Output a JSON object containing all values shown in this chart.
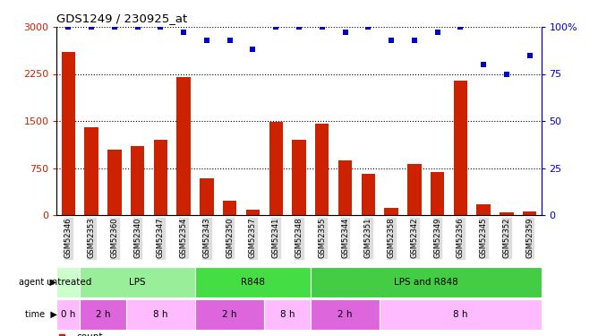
{
  "title": "GDS1249 / 230925_at",
  "samples": [
    "GSM52346",
    "GSM52353",
    "GSM52360",
    "GSM52340",
    "GSM52347",
    "GSM52354",
    "GSM52343",
    "GSM52350",
    "GSM52357",
    "GSM52341",
    "GSM52348",
    "GSM52355",
    "GSM52344",
    "GSM52351",
    "GSM52358",
    "GSM52342",
    "GSM52349",
    "GSM52356",
    "GSM52345",
    "GSM52352",
    "GSM52359"
  ],
  "counts": [
    2600,
    1400,
    1050,
    1100,
    1200,
    2200,
    580,
    230,
    90,
    1480,
    1200,
    1460,
    870,
    660,
    120,
    820,
    680,
    2150,
    170,
    50,
    55
  ],
  "percentile": [
    100,
    100,
    100,
    100,
    100,
    97,
    93,
    93,
    88,
    100,
    100,
    100,
    97,
    100,
    93,
    93,
    97,
    100,
    80,
    75,
    85
  ],
  "ylim_left": [
    0,
    3000
  ],
  "ylim_right": [
    0,
    100
  ],
  "yticks_left": [
    0,
    750,
    1500,
    2250,
    3000
  ],
  "yticks_right": [
    0,
    25,
    50,
    75,
    100
  ],
  "bar_color": "#CC2200",
  "dot_color": "#0000CC",
  "agent_row": [
    {
      "label": "untreated",
      "start": 0,
      "end": 1,
      "color": "#ccffcc"
    },
    {
      "label": "LPS",
      "start": 1,
      "end": 6,
      "color": "#99ee99"
    },
    {
      "label": "R848",
      "start": 6,
      "end": 11,
      "color": "#44dd44"
    },
    {
      "label": "LPS and R848",
      "start": 11,
      "end": 21,
      "color": "#44cc44"
    }
  ],
  "time_row": [
    {
      "label": "0 h",
      "start": 0,
      "end": 1,
      "color": "#ffbbff"
    },
    {
      "label": "2 h",
      "start": 1,
      "end": 3,
      "color": "#dd66dd"
    },
    {
      "label": "8 h",
      "start": 3,
      "end": 6,
      "color": "#ffbbff"
    },
    {
      "label": "2 h",
      "start": 6,
      "end": 9,
      "color": "#dd66dd"
    },
    {
      "label": "8 h",
      "start": 9,
      "end": 11,
      "color": "#ffbbff"
    },
    {
      "label": "2 h",
      "start": 11,
      "end": 14,
      "color": "#dd66dd"
    },
    {
      "label": "8 h",
      "start": 14,
      "end": 21,
      "color": "#ffbbff"
    }
  ],
  "grid_color": "#000000",
  "bg_color": "#ffffff",
  "tick_bg_color": "#dddddd"
}
